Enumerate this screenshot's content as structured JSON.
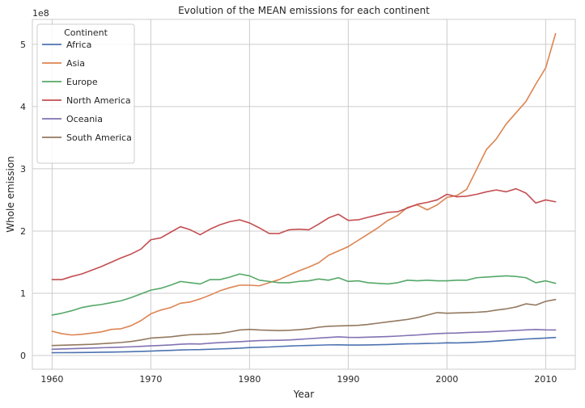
{
  "chart_data": {
    "type": "line",
    "title": "Evolution of the MEAN emissions for each continent",
    "xlabel": "Year",
    "ylabel": "Whole emission",
    "y_scale_label": "1e8",
    "xlim": [
      1958,
      2013
    ],
    "ylim": [
      -0.22,
      5.4
    ],
    "y_unit_multiplier": 100000000,
    "grid": true,
    "legend": {
      "title": "Continent",
      "placement": "top-left"
    },
    "x_ticks": [
      1960,
      1970,
      1980,
      1990,
      2000,
      2010
    ],
    "y_ticks": [
      0,
      1,
      2,
      3,
      4,
      5
    ],
    "x": [
      1960,
      1961,
      1962,
      1963,
      1964,
      1965,
      1966,
      1967,
      1968,
      1969,
      1970,
      1971,
      1972,
      1973,
      1974,
      1975,
      1976,
      1977,
      1978,
      1979,
      1980,
      1981,
      1982,
      1983,
      1984,
      1985,
      1986,
      1987,
      1988,
      1989,
      1990,
      1991,
      1992,
      1993,
      1994,
      1995,
      1996,
      1997,
      1998,
      1999,
      2000,
      2001,
      2002,
      2003,
      2004,
      2005,
      2006,
      2007,
      2008,
      2009,
      2010,
      2011
    ],
    "series": [
      {
        "name": "Africa",
        "color": "#4c72b0",
        "values": [
          0.045,
          0.046,
          0.047,
          0.048,
          0.05,
          0.053,
          0.055,
          0.058,
          0.062,
          0.066,
          0.071,
          0.078,
          0.083,
          0.089,
          0.093,
          0.095,
          0.101,
          0.106,
          0.112,
          0.118,
          0.128,
          0.133,
          0.137,
          0.145,
          0.152,
          0.158,
          0.162,
          0.166,
          0.171,
          0.172,
          0.168,
          0.169,
          0.17,
          0.173,
          0.177,
          0.183,
          0.188,
          0.19,
          0.194,
          0.197,
          0.204,
          0.203,
          0.208,
          0.214,
          0.222,
          0.232,
          0.243,
          0.253,
          0.265,
          0.272,
          0.28,
          0.29
        ]
      },
      {
        "name": "Asia",
        "color": "#dd8452",
        "values": [
          0.39,
          0.35,
          0.33,
          0.34,
          0.36,
          0.38,
          0.42,
          0.43,
          0.48,
          0.56,
          0.67,
          0.73,
          0.77,
          0.84,
          0.86,
          0.91,
          0.97,
          1.04,
          1.09,
          1.13,
          1.13,
          1.12,
          1.17,
          1.22,
          1.29,
          1.36,
          1.42,
          1.49,
          1.61,
          1.68,
          1.75,
          1.85,
          1.95,
          2.05,
          2.17,
          2.25,
          2.38,
          2.42,
          2.34,
          2.42,
          2.54,
          2.57,
          2.67,
          2.99,
          3.31,
          3.48,
          3.72,
          3.9,
          4.08,
          4.36,
          4.62,
          5.17
        ]
      },
      {
        "name": "Europe",
        "color": "#55a868",
        "values": [
          0.65,
          0.68,
          0.72,
          0.77,
          0.8,
          0.82,
          0.85,
          0.88,
          0.93,
          0.99,
          1.05,
          1.08,
          1.13,
          1.19,
          1.17,
          1.15,
          1.22,
          1.22,
          1.26,
          1.31,
          1.28,
          1.21,
          1.19,
          1.17,
          1.17,
          1.19,
          1.2,
          1.23,
          1.21,
          1.25,
          1.19,
          1.2,
          1.17,
          1.16,
          1.15,
          1.17,
          1.21,
          1.2,
          1.21,
          1.2,
          1.2,
          1.21,
          1.21,
          1.25,
          1.26,
          1.27,
          1.28,
          1.27,
          1.25,
          1.17,
          1.2,
          1.16
        ]
      },
      {
        "name": "North America",
        "color": "#c44e52",
        "values": [
          1.22,
          1.22,
          1.27,
          1.31,
          1.37,
          1.43,
          1.5,
          1.57,
          1.63,
          1.71,
          1.86,
          1.89,
          1.98,
          2.07,
          2.02,
          1.94,
          2.03,
          2.1,
          2.15,
          2.18,
          2.13,
          2.05,
          1.96,
          1.96,
          2.02,
          2.03,
          2.02,
          2.11,
          2.21,
          2.27,
          2.17,
          2.18,
          2.22,
          2.26,
          2.3,
          2.31,
          2.37,
          2.43,
          2.46,
          2.5,
          2.59,
          2.55,
          2.56,
          2.59,
          2.63,
          2.66,
          2.63,
          2.68,
          2.61,
          2.45,
          2.5,
          2.47
        ]
      },
      {
        "name": "Oceania",
        "color": "#8172b3",
        "values": [
          0.1,
          0.105,
          0.11,
          0.115,
          0.12,
          0.125,
          0.13,
          0.135,
          0.14,
          0.148,
          0.155,
          0.162,
          0.17,
          0.182,
          0.188,
          0.185,
          0.198,
          0.207,
          0.215,
          0.222,
          0.232,
          0.24,
          0.243,
          0.245,
          0.25,
          0.26,
          0.27,
          0.28,
          0.29,
          0.3,
          0.292,
          0.29,
          0.295,
          0.3,
          0.305,
          0.312,
          0.322,
          0.33,
          0.342,
          0.352,
          0.358,
          0.362,
          0.37,
          0.375,
          0.38,
          0.388,
          0.395,
          0.403,
          0.412,
          0.418,
          0.412,
          0.41
        ]
      },
      {
        "name": "South America",
        "color": "#937860",
        "values": [
          0.16,
          0.165,
          0.17,
          0.175,
          0.18,
          0.19,
          0.2,
          0.21,
          0.225,
          0.25,
          0.28,
          0.29,
          0.3,
          0.32,
          0.335,
          0.34,
          0.345,
          0.355,
          0.38,
          0.41,
          0.42,
          0.41,
          0.405,
          0.4,
          0.405,
          0.415,
          0.43,
          0.455,
          0.47,
          0.475,
          0.48,
          0.485,
          0.5,
          0.52,
          0.54,
          0.56,
          0.58,
          0.61,
          0.65,
          0.69,
          0.68,
          0.685,
          0.69,
          0.695,
          0.705,
          0.73,
          0.75,
          0.78,
          0.83,
          0.81,
          0.87,
          0.9
        ]
      }
    ]
  }
}
